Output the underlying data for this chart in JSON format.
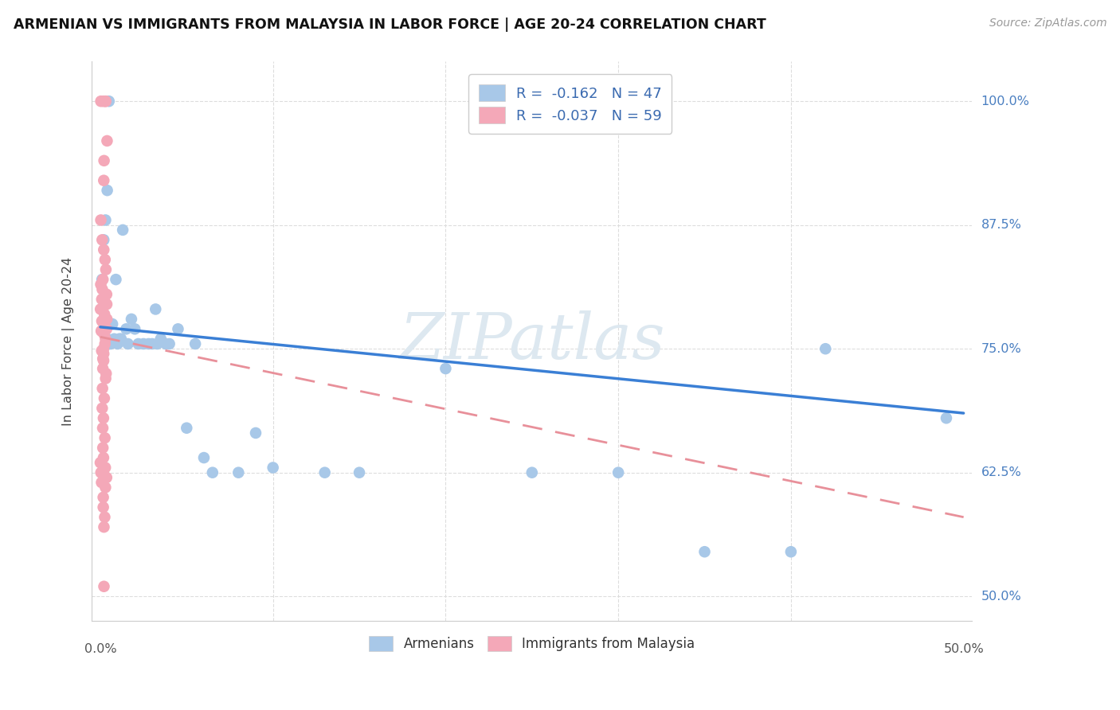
{
  "title": "ARMENIAN VS IMMIGRANTS FROM MALAYSIA IN LABOR FORCE | AGE 20-24 CORRELATION CHART",
  "source": "Source: ZipAtlas.com",
  "ylabel": "In Labor Force | Age 20-24",
  "y_ticks": [
    0.5,
    0.625,
    0.75,
    0.875,
    1.0
  ],
  "y_tick_labels": [
    "50.0%",
    "62.5%",
    "75.0%",
    "87.5%",
    "100.0%"
  ],
  "x_min": -0.005,
  "x_max": 0.505,
  "y_min": 0.475,
  "y_max": 1.04,
  "armenians_color": "#a8c8e8",
  "malaysia_color": "#f4a8b8",
  "line_armenians_color": "#3a7fd5",
  "line_malaysia_color": "#e8909a",
  "watermark_color": "#dde8f0",
  "bg_color": "#ffffff",
  "arm_line_x0": 0.0,
  "arm_line_x1": 0.5,
  "arm_line_y0": 0.772,
  "arm_line_y1": 0.685,
  "mal_line_x0": 0.0,
  "mal_line_x1": 0.5,
  "mal_line_y0": 0.762,
  "mal_line_y1": 0.58,
  "arm_x": [
    0.003,
    0.004,
    0.005,
    0.005,
    0.006,
    0.007,
    0.008,
    0.009,
    0.01,
    0.011,
    0.012,
    0.013,
    0.015,
    0.016,
    0.018,
    0.02,
    0.022,
    0.025,
    0.028,
    0.03,
    0.032,
    0.033,
    0.035,
    0.038,
    0.04,
    0.045,
    0.05,
    0.055,
    0.06,
    0.065,
    0.08,
    0.09,
    0.1,
    0.13,
    0.15,
    0.2,
    0.25,
    0.3,
    0.35,
    0.4,
    0.42,
    0.49,
    0.001,
    0.002,
    0.003,
    0.004,
    0.005
  ],
  "arm_y": [
    0.77,
    0.76,
    0.755,
    0.775,
    0.755,
    0.775,
    0.76,
    0.82,
    0.755,
    0.76,
    0.76,
    0.87,
    0.77,
    0.755,
    0.78,
    0.77,
    0.755,
    0.755,
    0.755,
    0.755,
    0.79,
    0.755,
    0.76,
    0.755,
    0.755,
    0.77,
    0.67,
    0.755,
    0.64,
    0.625,
    0.625,
    0.665,
    0.63,
    0.625,
    0.625,
    0.73,
    0.625,
    0.625,
    0.545,
    0.545,
    0.75,
    0.68,
    0.82,
    0.86,
    0.88,
    0.91,
    1.0
  ],
  "mal_x": [
    0.0,
    0.0,
    0.0,
    0.0,
    0.0,
    0.0,
    0.0,
    0.0,
    0.0,
    0.0,
    0.0,
    0.0,
    0.0,
    0.0,
    0.0,
    0.0,
    0.0,
    0.0,
    0.0,
    0.0,
    0.0,
    0.0,
    0.0,
    0.0,
    0.0,
    0.0,
    0.0,
    0.0,
    0.0,
    0.0,
    0.0,
    0.0,
    0.0,
    0.0,
    0.0,
    0.0,
    0.0,
    0.0,
    0.0,
    0.0,
    0.0,
    0.0,
    0.0,
    0.0,
    0.0,
    0.0,
    0.0,
    0.0,
    0.0,
    0.0,
    0.0,
    0.0,
    0.0,
    0.0,
    0.0,
    0.0,
    0.0,
    0.0,
    0.0
  ],
  "mal_y": [
    1.0,
    1.0,
    1.0,
    1.0,
    0.96,
    0.94,
    0.92,
    0.88,
    0.86,
    0.85,
    0.84,
    0.83,
    0.82,
    0.815,
    0.81,
    0.805,
    0.8,
    0.8,
    0.795,
    0.79,
    0.785,
    0.78,
    0.778,
    0.775,
    0.77,
    0.768,
    0.765,
    0.76,
    0.755,
    0.75,
    0.748,
    0.745,
    0.74,
    0.738,
    0.73,
    0.725,
    0.72,
    0.71,
    0.7,
    0.69,
    0.68,
    0.67,
    0.66,
    0.65,
    0.64,
    0.63,
    0.625,
    0.62,
    0.615,
    0.61,
    0.6,
    0.59,
    0.58,
    0.57,
    0.625,
    0.635,
    0.625,
    0.62,
    0.51
  ]
}
